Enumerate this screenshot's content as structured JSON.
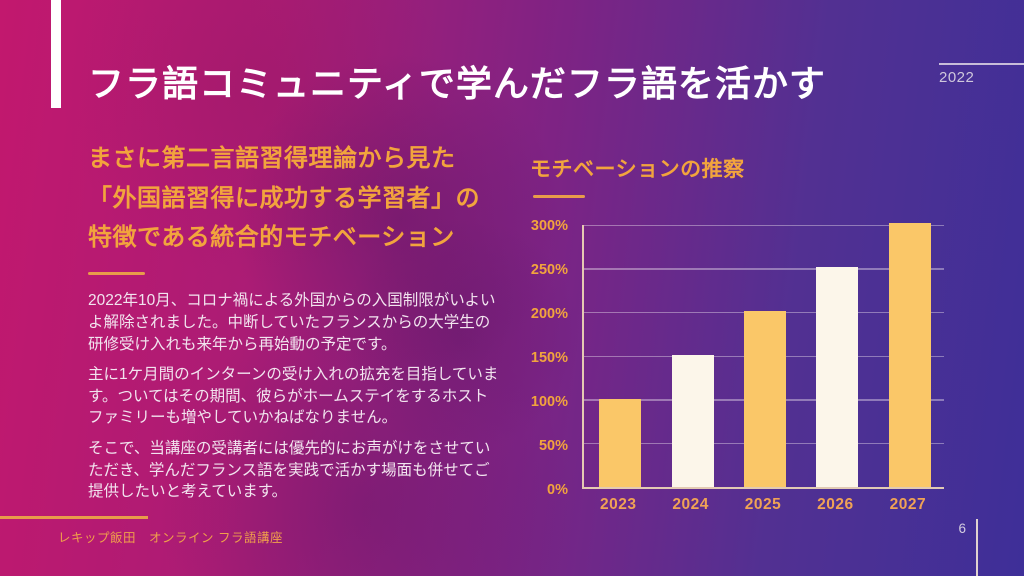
{
  "slide": {
    "title": "フラ語コミュニティで学んだフラ語を活かす",
    "year": "2022",
    "footer": "レキップ飯田　オンライン フラ語講座",
    "page_number": "6"
  },
  "left_column": {
    "heading_lines": [
      "まさに第二言語習得理論から見た",
      "「外国語習得に成功する学習者」の",
      "特徴である統合的モチベーション"
    ],
    "paragraphs": [
      "2022年10月、コロナ禍による外国からの入国制限がいよいよ解除されました。中断していたフランスからの大学生の研修受け入れも来年から再始動の予定です。",
      "主に1ケ月間のインターンの受け入れの拡充を目指しています。ついてはその期間、彼らがホームステイをするホストファミリーも増やしていかねばなりません。",
      "そこで、当講座の受講者には優先的にお声がけをさせていただき、学んだフランス語を実践で活かす場面も併せてご提供したいと考えています。"
    ]
  },
  "chart_data": {
    "type": "bar",
    "title": "モチベーションの推察",
    "categories": [
      "2023",
      "2024",
      "2025",
      "2026",
      "2027"
    ],
    "values": [
      100,
      150,
      200,
      250,
      300
    ],
    "value_unit": "%",
    "xlabel": "",
    "ylabel": "",
    "ylim": [
      0,
      300
    ],
    "yticks": [
      0,
      50,
      100,
      150,
      200,
      250,
      300
    ],
    "ytick_labels": [
      "0%",
      "50%",
      "100%",
      "150%",
      "200%",
      "250%",
      "300%"
    ],
    "grid": true,
    "legend": false,
    "bar_colors": [
      "#FAC768",
      "#FCF6EA",
      "#FAC768",
      "#FCF6EA",
      "#FAC768"
    ]
  },
  "colors": {
    "accent_orange": "#F2A43D",
    "divider_orange": "#E89C4A",
    "bar_orange": "#FAC768",
    "bar_cream": "#FCF6EA",
    "background_left": "#C2186E",
    "background_right": "#3E2F98",
    "title_text": "#FFFFFF",
    "body_text": "#F2E4EF"
  }
}
